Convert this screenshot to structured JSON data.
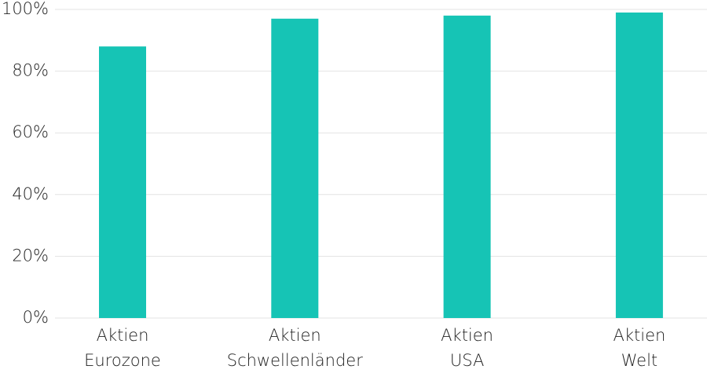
{
  "chart_data": {
    "type": "bar",
    "categories": [
      "Aktien\nEurozone",
      "Aktien\nSchwellenländer",
      "Aktien\nUSA",
      "Aktien\nWelt"
    ],
    "values": [
      88,
      97,
      98,
      99
    ],
    "color": "#16c4b5",
    "ylim": [
      0,
      100
    ],
    "yticks": [
      {
        "value": 0,
        "label": "0%"
      },
      {
        "value": 20,
        "label": "20%"
      },
      {
        "value": 40,
        "label": "40%"
      },
      {
        "value": 60,
        "label": "60%"
      },
      {
        "value": 80,
        "label": "80%"
      },
      {
        "value": 100,
        "label": "100%"
      }
    ],
    "grid": true
  }
}
